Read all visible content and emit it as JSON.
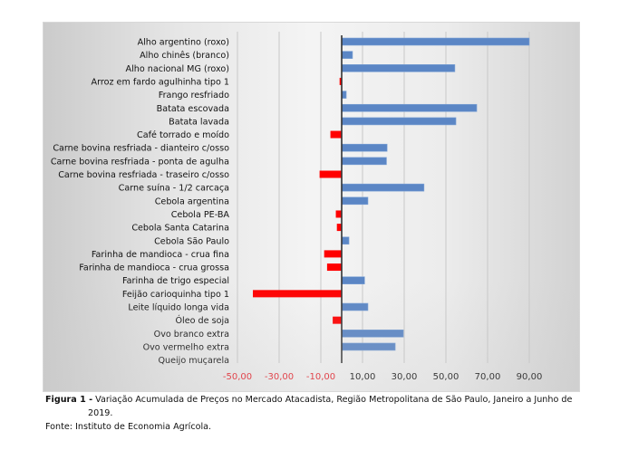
{
  "chart_data": {
    "type": "bar",
    "orientation": "horizontal",
    "title": "",
    "xlabel": "",
    "ylabel": "",
    "xlim": [
      -55,
      100
    ],
    "grid": true,
    "legend": "none",
    "x_ticks": [
      -50,
      -30,
      -10,
      10,
      30,
      50,
      70,
      90
    ],
    "x_tick_labels": [
      "-50,00",
      "-30,00",
      "-10,00",
      "10,00",
      "30,00",
      "50,00",
      "70,00",
      "90,00"
    ],
    "categories": [
      "Alho argentino (roxo)",
      "Alho chinês (branco)",
      "Alho nacional MG (roxo)",
      "Arroz em fardo agulhinha tipo 1",
      "Frango resfriado",
      "Batata escovada",
      "Batata lavada",
      "Café torrado e moído",
      "Carne bovina resfriada - dianteiro c/osso",
      "Carne bovina resfriada - ponta de agulha",
      "Carne bovina resfriada - traseiro c/osso",
      "Carne suína - 1/2 carcaça",
      "Cebola argentina",
      "Cebola PE-BA",
      "Cebola Santa Catarina",
      "Cebola São Paulo",
      "Farinha de mandioca - crua fina",
      "Farinha de mandioca - crua grossa",
      "Farinha de trigo especial",
      "Feijão carioquinha tipo 1",
      "Leite líquido longa vida",
      "Óleo de soja",
      "Ovo branco extra",
      "Ovo vermelho extra",
      "Queijo muçarela"
    ],
    "values": [
      90.0,
      5.2,
      54.3,
      -1.0,
      2.2,
      64.8,
      54.8,
      -5.4,
      21.8,
      21.5,
      -10.6,
      39.5,
      12.6,
      -2.8,
      -2.3,
      3.5,
      -8.4,
      -7.0,
      11.0,
      -42.6,
      12.6,
      -4.3,
      29.6,
      25.7,
      0.0
    ],
    "colors": {
      "positive": "#5b86c5",
      "negative": "#ff0000",
      "positive_tick_label": "#111111",
      "negative_tick_label": "#e8212a",
      "zero_axis": "#333333",
      "grid": "#c8c8c8"
    }
  },
  "caption": {
    "figure_label": "Figura 1 -",
    "figure_text": " Variação Acumulada de Preços no Mercado Atacadista, Região Metropolitana de São Paulo, Janeiro a Junho de",
    "figure_year": "2019.",
    "source": "Fonte: Instituto de Economia Agrícola."
  }
}
